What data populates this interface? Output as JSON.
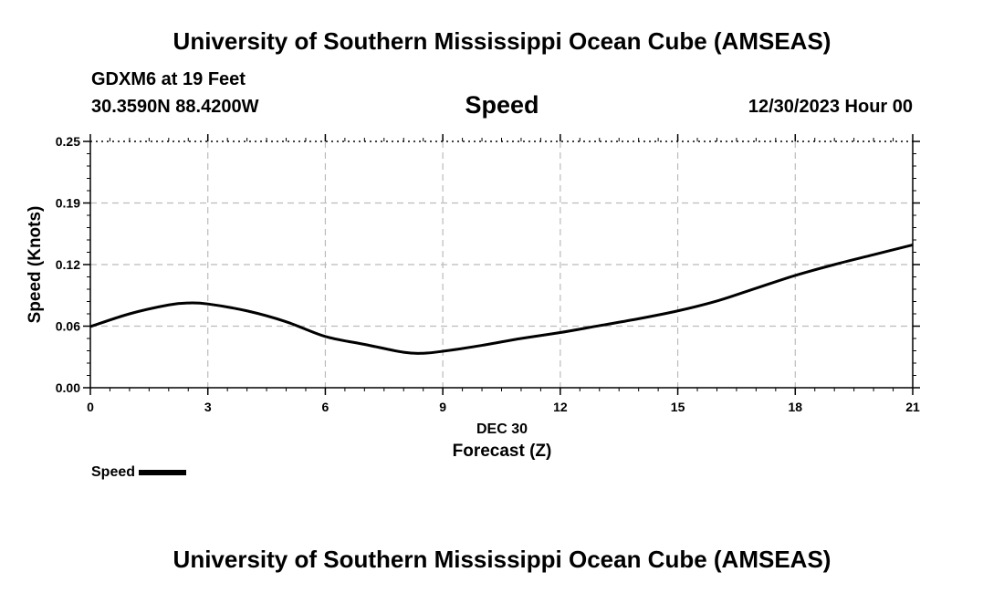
{
  "page": {
    "title_top": "University of Southern Mississippi Ocean Cube (AMSEAS)",
    "title_bottom": "University of Southern Mississippi Ocean Cube (AMSEAS)",
    "station": "GDXM6 at 19 Feet",
    "coords": "30.3590N  88.4200W",
    "chart_title": "Speed",
    "datetime": "12/30/2023 Hour 00"
  },
  "chart_data": {
    "type": "line",
    "title": "Speed",
    "xlabel": "Forecast (Z)",
    "xsublabel": "DEC 30",
    "ylabel": "Speed (Knots)",
    "xlim": [
      0,
      21
    ],
    "ylim": [
      0,
      0.25
    ],
    "xticks": [
      0,
      3,
      6,
      9,
      12,
      15,
      18,
      21
    ],
    "xtick_labels": [
      "0",
      "3",
      "6",
      "9",
      "12",
      "15",
      "18",
      "21"
    ],
    "yticks": [
      0,
      0.0625,
      0.125,
      0.1875,
      0.25
    ],
    "ytick_labels": [
      "0.00",
      "0.06",
      "0.12",
      "0.19",
      "0.25"
    ],
    "grid": true,
    "series": [
      {
        "name": "Speed",
        "color": "#000000",
        "x": [
          0,
          1,
          2,
          2.5,
          3,
          4,
          5,
          6,
          7,
          8,
          8.5,
          9,
          10,
          11,
          12,
          13,
          14,
          15,
          16,
          17,
          18,
          19,
          20,
          21
        ],
        "y": [
          0.062,
          0.075,
          0.084,
          0.086,
          0.085,
          0.078,
          0.067,
          0.052,
          0.044,
          0.036,
          0.035,
          0.037,
          0.043,
          0.05,
          0.056,
          0.063,
          0.07,
          0.078,
          0.088,
          0.101,
          0.114,
          0.125,
          0.135,
          0.145
        ]
      }
    ],
    "legend": [
      {
        "label": "Speed",
        "color": "#000000"
      }
    ],
    "legend_position": "bottom-left"
  }
}
